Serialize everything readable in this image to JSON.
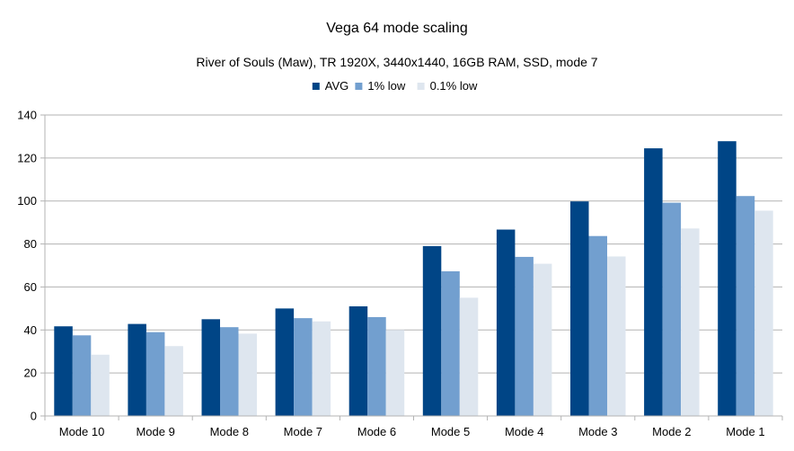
{
  "chart_data": {
    "type": "bar",
    "title": "Vega 64 mode scaling",
    "subtitle": "River of Souls (Maw), TR 1920X, 3440x1440, 16GB RAM, SSD, mode 7",
    "xlabel": "",
    "ylabel": "",
    "ylim": [
      0,
      140
    ],
    "ytick_step": 20,
    "grid": true,
    "legend_position": "top-center",
    "categories": [
      "Mode 10",
      "Mode 9",
      "Mode 8",
      "Mode 7",
      "Mode 6",
      "Mode 5",
      "Mode 4",
      "Mode 3",
      "Mode 2",
      "Mode 1"
    ],
    "series": [
      {
        "name": "AVG",
        "color": "#004586",
        "values": [
          41.7,
          42.8,
          45.0,
          50.0,
          51.0,
          79.0,
          86.7,
          99.8,
          124.5,
          127.8
        ]
      },
      {
        "name": "1% low",
        "color": "#729fcf",
        "values": [
          37.5,
          39.0,
          41.3,
          45.5,
          46.0,
          67.3,
          74.0,
          83.7,
          99.2,
          102.3
        ]
      },
      {
        "name": "0.1% low",
        "color": "#dee6ef",
        "values": [
          28.5,
          32.5,
          38.3,
          44.0,
          40.0,
          55.0,
          70.8,
          74.2,
          87.2,
          95.5
        ]
      }
    ]
  }
}
